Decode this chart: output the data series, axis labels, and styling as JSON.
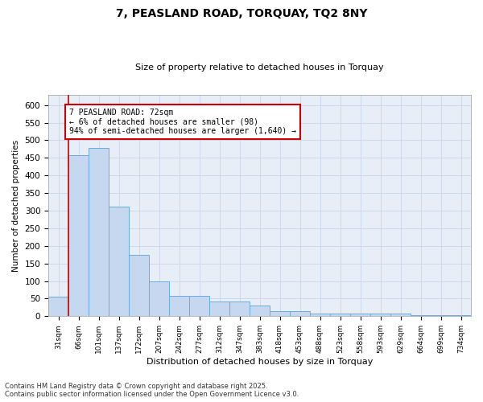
{
  "title": "7, PEASLAND ROAD, TORQUAY, TQ2 8NY",
  "subtitle": "Size of property relative to detached houses in Torquay",
  "xlabel": "Distribution of detached houses by size in Torquay",
  "ylabel": "Number of detached properties",
  "categories": [
    "31sqm",
    "66sqm",
    "101sqm",
    "137sqm",
    "172sqm",
    "207sqm",
    "242sqm",
    "277sqm",
    "312sqm",
    "347sqm",
    "383sqm",
    "418sqm",
    "453sqm",
    "488sqm",
    "523sqm",
    "558sqm",
    "593sqm",
    "629sqm",
    "664sqm",
    "699sqm",
    "734sqm"
  ],
  "values": [
    55,
    457,
    478,
    312,
    175,
    100,
    59,
    59,
    43,
    43,
    30,
    14,
    14,
    8,
    8,
    8,
    7,
    7,
    3,
    3,
    4
  ],
  "bar_color": "#c5d8f0",
  "bar_edge_color": "#6aabde",
  "grid_color": "#c8d4e8",
  "bg_color": "#e8eef8",
  "annotation_text": "7 PEASLAND ROAD: 72sqm\n← 6% of detached houses are smaller (98)\n94% of semi-detached houses are larger (1,640) →",
  "annotation_box_color": "#ffffff",
  "annotation_box_edge": "#cc0000",
  "footer_text": "Contains HM Land Registry data © Crown copyright and database right 2025.\nContains public sector information licensed under the Open Government Licence v3.0.",
  "ylim": [
    0,
    630
  ],
  "yticks": [
    0,
    50,
    100,
    150,
    200,
    250,
    300,
    350,
    400,
    450,
    500,
    550,
    600
  ]
}
